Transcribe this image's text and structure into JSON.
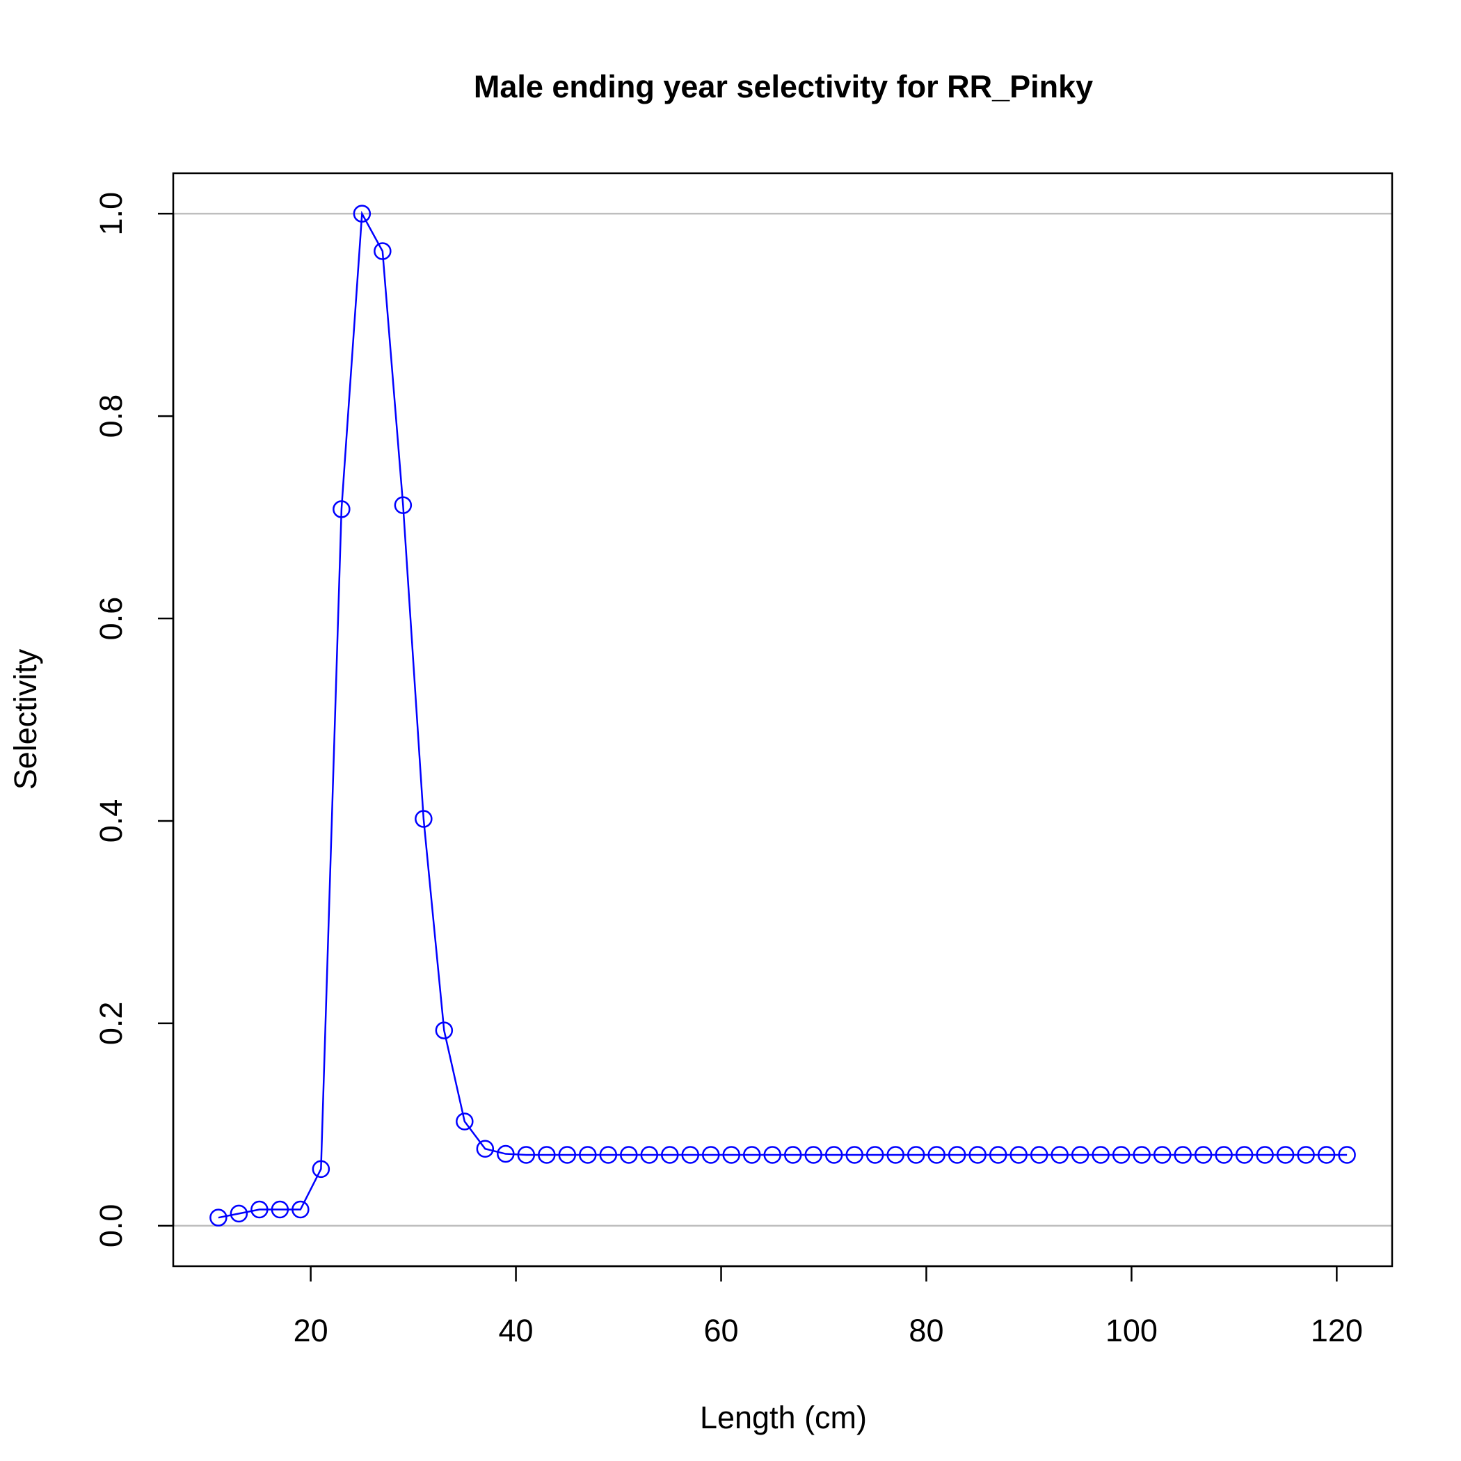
{
  "chart_data": {
    "type": "line",
    "title": "Male ending year selectivity for RR_Pinky",
    "xlabel": "Length (cm)",
    "ylabel": "Selectivity",
    "xlim": [
      6.6,
      125.4
    ],
    "ylim": [
      -0.04,
      1.04
    ],
    "xticks": [
      20,
      40,
      60,
      80,
      100,
      120
    ],
    "yticks": [
      0.0,
      0.2,
      0.4,
      0.6,
      0.8,
      1.0
    ],
    "ytick_labels": [
      "0.0",
      "0.2",
      "0.4",
      "0.6",
      "0.8",
      "1.0"
    ],
    "reference_lines": [
      0,
      1
    ],
    "colors": {
      "series": "#0000ff",
      "reference": "#bebebe",
      "axis": "#000000"
    },
    "series": [
      {
        "x": [
          11,
          13,
          15,
          17,
          19,
          21,
          23,
          25,
          27,
          29,
          31,
          33,
          35,
          37,
          39,
          41,
          43,
          45,
          47,
          49,
          51,
          53,
          55,
          57,
          59,
          61,
          63,
          65,
          67,
          69,
          71,
          73,
          75,
          77,
          79,
          81,
          83,
          85,
          87,
          89,
          91,
          93,
          95,
          97,
          99,
          101,
          103,
          105,
          107,
          109,
          111,
          113,
          115,
          117,
          119,
          121
        ],
        "values": [
          0.008,
          0.012,
          0.016,
          0.016,
          0.016,
          0.056,
          0.708,
          1.0,
          0.963,
          0.712,
          0.402,
          0.193,
          0.103,
          0.076,
          0.071,
          0.07,
          0.07,
          0.07,
          0.07,
          0.07,
          0.07,
          0.07,
          0.07,
          0.07,
          0.07,
          0.07,
          0.07,
          0.07,
          0.07,
          0.07,
          0.07,
          0.07,
          0.07,
          0.07,
          0.07,
          0.07,
          0.07,
          0.07,
          0.07,
          0.07,
          0.07,
          0.07,
          0.07,
          0.07,
          0.07,
          0.07,
          0.07,
          0.07,
          0.07,
          0.07,
          0.07,
          0.07,
          0.07,
          0.07,
          0.07,
          0.07
        ]
      }
    ]
  }
}
